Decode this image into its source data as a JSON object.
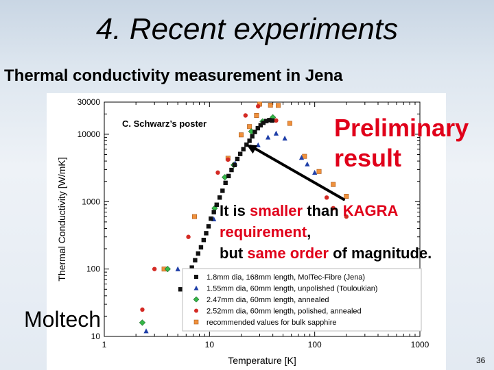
{
  "slide": {
    "title": "4. Recent experiments",
    "subtitle": "Thermal conductivity measurement in Jena",
    "page_number": "36"
  },
  "callouts": {
    "poster_label": "C. Schwarz’s poster",
    "preliminary_line1": "Preliminary",
    "preliminary_line2": "result",
    "note_line1_a": "It is ",
    "note_line1_b": "smaller",
    "note_line1_c": " than  ",
    "note_line1_d": "KAGRA",
    "note_line2_a": "requirement",
    "note_line2_b": ",",
    "note_line3_a": "but ",
    "note_line3_b": "same order",
    "note_line3_c": " of magnitude.",
    "moltech": "Moltech"
  },
  "colors": {
    "red_text": "#e0001a",
    "series_black": "#111111",
    "series_blue": "#1f3fa8",
    "series_green": "#35b848",
    "series_red": "#d42a24",
    "series_orange": "#f0913c"
  },
  "chart_data": {
    "type": "scatter",
    "xlabel": "Temperature [K]",
    "ylabel": "Thermal Conductivity [W/mK]",
    "xscale": "log",
    "yscale": "log",
    "xlim": [
      1,
      1000
    ],
    "ylim": [
      10,
      30000
    ],
    "x_ticks": [
      1,
      10,
      100,
      1000
    ],
    "x_tick_labels": [
      "1",
      "10",
      "100",
      "1000"
    ],
    "y_ticks": [
      10,
      100,
      1000,
      10000,
      30000
    ],
    "y_tick_labels": [
      "10",
      "100",
      "1000",
      "10000",
      "30000"
    ],
    "legend_position": "bottom-right",
    "series": [
      {
        "name": "1.8mm dia, 168mm length, MolTec-Fibre (Jena)",
        "marker": "square",
        "color": "#111111",
        "points": [
          [
            5.3,
            50
          ],
          [
            5.8,
            65
          ],
          [
            6.3,
            80
          ],
          [
            6.8,
            105
          ],
          [
            7.3,
            135
          ],
          [
            7.8,
            170
          ],
          [
            8.3,
            210
          ],
          [
            8.8,
            270
          ],
          [
            9.3,
            340
          ],
          [
            9.8,
            430
          ],
          [
            10.3,
            560
          ],
          [
            11,
            700
          ],
          [
            11.7,
            900
          ],
          [
            12.5,
            1150
          ],
          [
            13.3,
            1450
          ],
          [
            14.2,
            1900
          ],
          [
            15.2,
            2400
          ],
          [
            16.2,
            2950
          ],
          [
            17.3,
            3500
          ],
          [
            18.4,
            4300
          ],
          [
            19.6,
            5100
          ],
          [
            21,
            6000
          ],
          [
            22.5,
            7000
          ],
          [
            24,
            8000
          ],
          [
            25.5,
            9300
          ],
          [
            27,
            10800
          ],
          [
            28.8,
            12300
          ],
          [
            30.6,
            13600
          ],
          [
            32.5,
            14800
          ],
          [
            34.7,
            15700
          ],
          [
            37,
            16200
          ],
          [
            39.5,
            16000
          ]
        ]
      },
      {
        "name": "1.55mm dia, 60mm length, unpolished (Touloukian)",
        "marker": "triangle",
        "color": "#1f3fa8",
        "points": [
          [
            2.5,
            12
          ],
          [
            5,
            100
          ],
          [
            11,
            550
          ],
          [
            17.5,
            3700
          ],
          [
            29,
            6900
          ],
          [
            36,
            9000
          ],
          [
            43,
            10300
          ],
          [
            52,
            8700
          ],
          [
            75,
            4500
          ],
          [
            85,
            3600
          ],
          [
            100,
            2700
          ]
        ]
      },
      {
        "name": "2.47mm dia, 60mm length, annealed",
        "marker": "diamond",
        "color": "#35b848",
        "points": [
          [
            2.3,
            16
          ],
          [
            4,
            100
          ],
          [
            11.2,
            800
          ],
          [
            14,
            2300
          ],
          [
            17,
            3500
          ],
          [
            25,
            11000
          ],
          [
            32,
            15500
          ],
          [
            40,
            17800
          ]
        ]
      },
      {
        "name": "2.52mm dia, 60mm length, polished, annealed",
        "marker": "circle",
        "color": "#d42a24",
        "points": [
          [
            2.3,
            25
          ],
          [
            3,
            100
          ],
          [
            6.3,
            300
          ],
          [
            12,
            2700
          ],
          [
            15,
            4200
          ],
          [
            22,
            19000
          ],
          [
            29,
            26000
          ],
          [
            43,
            16000
          ],
          [
            130,
            1150
          ],
          [
            150,
            800
          ],
          [
            200,
            600
          ]
        ]
      },
      {
        "name": "recommended values for bulk sapphire",
        "marker": "square",
        "color": "#f0913c",
        "points": [
          [
            3.7,
            100
          ],
          [
            7.2,
            600
          ],
          [
            15,
            4400
          ],
          [
            20,
            9800
          ],
          [
            24,
            13000
          ],
          [
            28,
            19000
          ],
          [
            30,
            28000
          ],
          [
            38,
            27000
          ],
          [
            45,
            26800
          ],
          [
            58,
            14500
          ],
          [
            80,
            4700
          ],
          [
            110,
            2800
          ],
          [
            150,
            1800
          ],
          [
            200,
            1200
          ]
        ]
      }
    ],
    "annotations": [
      "C. Schwarz’s poster",
      "Preliminary result"
    ]
  }
}
